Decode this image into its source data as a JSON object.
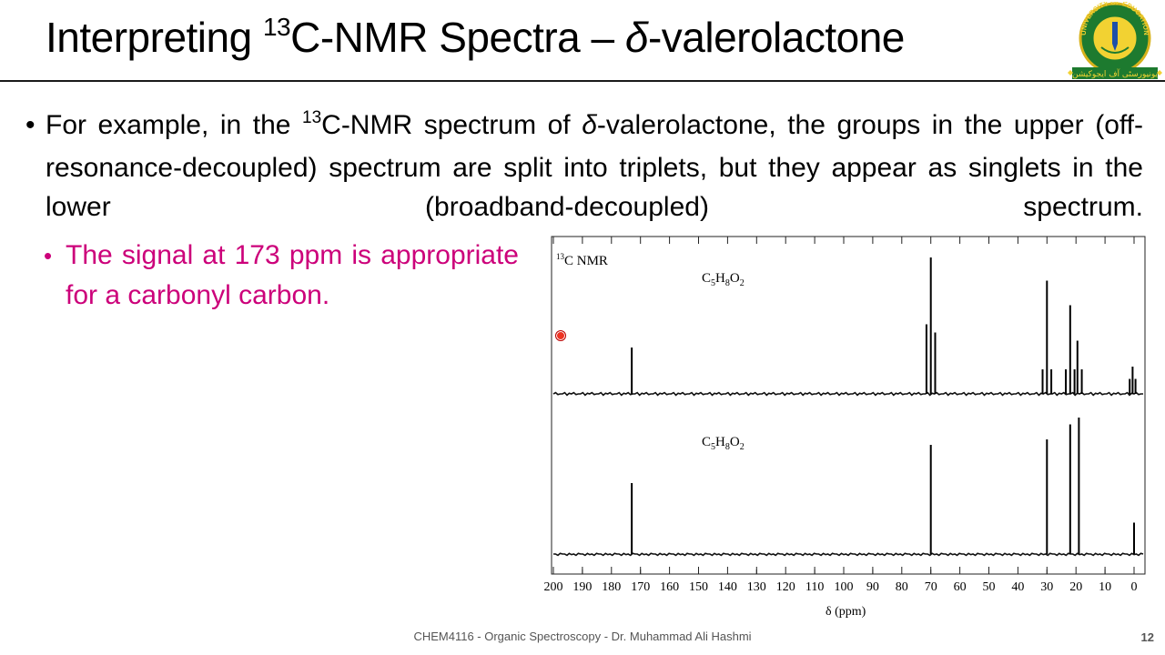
{
  "slide": {
    "title_pre": "Interpreting ",
    "title_sup": "13",
    "title_mid": "C-NMR Spectra – ",
    "title_delta": "δ",
    "title_post": "-valerolactone",
    "logo_text": "UNIVERSITY OF EDUCATION",
    "logo_motto": "TOWARDS THE ULTIMATE GOALS",
    "logo_urdu": "یونیورسٹی آف ایجوکیشن"
  },
  "bullet1": {
    "pre": "For example, in the ",
    "sup": "13",
    "mid": "C-NMR spectrum of ",
    "delta": "δ",
    "post": "-valerolactone, the groups in the upper (off-resonance-decoupled) spectrum are split into triplets, but they appear as singlets in the lower (broadband-decoupled) spectrum."
  },
  "bullet2": {
    "text": "The signal at 173 ppm is appropriate for a carbonyl carbon."
  },
  "chart_data": {
    "type": "line",
    "label": "13C NMR",
    "xlabel": "δ (ppm)",
    "xlim": [
      200,
      0
    ],
    "reverse_x": true,
    "x_ticks": [
      200,
      190,
      180,
      170,
      160,
      150,
      140,
      130,
      120,
      110,
      100,
      90,
      80,
      70,
      60,
      50,
      40,
      30,
      20,
      10,
      0
    ],
    "grid": false,
    "panels": [
      {
        "name": "off-resonance-decoupled",
        "formula": "C5H8O2",
        "peaks": [
          {
            "ppm": 173,
            "height": 0.34
          },
          {
            "ppm": 71.5,
            "height": 0.51
          },
          {
            "ppm": 70,
            "height": 1.0
          },
          {
            "ppm": 68.5,
            "height": 0.45
          },
          {
            "ppm": 31.5,
            "height": 0.18
          },
          {
            "ppm": 30,
            "height": 0.83
          },
          {
            "ppm": 28.5,
            "height": 0.18
          },
          {
            "ppm": 23.5,
            "height": 0.18
          },
          {
            "ppm": 22,
            "height": 0.65
          },
          {
            "ppm": 20.5,
            "height": 0.18
          },
          {
            "ppm": 19.5,
            "height": 0.39
          },
          {
            "ppm": 18,
            "height": 0.18
          },
          {
            "ppm": 1.5,
            "height": 0.11
          },
          {
            "ppm": 0.5,
            "height": 0.2
          },
          {
            "ppm": -0.5,
            "height": 0.11
          }
        ]
      },
      {
        "name": "broadband-decoupled",
        "formula": "C5H8O2",
        "peaks": [
          {
            "ppm": 173,
            "height": 0.52
          },
          {
            "ppm": 70,
            "height": 0.8
          },
          {
            "ppm": 30,
            "height": 0.84
          },
          {
            "ppm": 22,
            "height": 0.95
          },
          {
            "ppm": 19,
            "height": 1.0
          },
          {
            "ppm": 0,
            "height": 0.23
          }
        ]
      }
    ]
  },
  "footer": {
    "text": "CHEM4116 - Organic Spectroscopy - Dr. Muhammad Ali Hashmi",
    "page": "12"
  }
}
